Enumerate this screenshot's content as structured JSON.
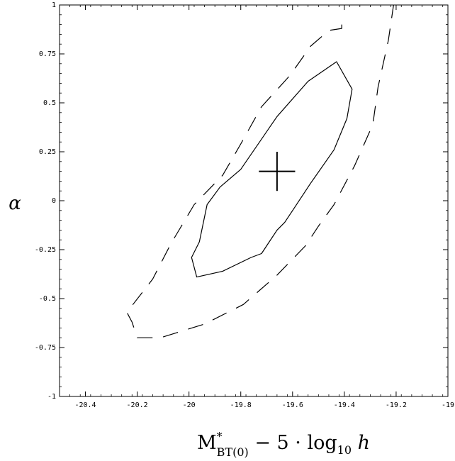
{
  "chart_data": {
    "type": "contour",
    "xlabel": "M*BT(0) − 5·log10 h",
    "xlabel_parts": {
      "base": "M",
      "sup": "*",
      "sub": "BT(0)",
      "rest": " − 5 · log",
      "log_sub": "10",
      "tail": " h"
    },
    "ylabel": "α",
    "xlim": [
      -20.5,
      -19.0
    ],
    "ylim": [
      -1,
      1
    ],
    "x_ticks": [
      {
        "value": -20.4,
        "label": "-20.4"
      },
      {
        "value": -20.2,
        "label": "-20.2"
      },
      {
        "value": -20.0,
        "label": "-20"
      },
      {
        "value": -19.8,
        "label": "-19.8"
      },
      {
        "value": -19.6,
        "label": "-19.6"
      },
      {
        "value": -19.4,
        "label": "-19.4"
      },
      {
        "value": -19.2,
        "label": "-19.2"
      },
      {
        "value": -19.0,
        "label": "-19"
      }
    ],
    "y_ticks": [
      {
        "value": -1,
        "label": "-1"
      },
      {
        "value": -0.75,
        "label": "-0.75"
      },
      {
        "value": -0.5,
        "label": "-0.5"
      },
      {
        "value": -0.25,
        "label": "-0.25"
      },
      {
        "value": 0,
        "label": "0"
      },
      {
        "value": 0.25,
        "label": "0.25"
      },
      {
        "value": 0.5,
        "label": "0.5"
      },
      {
        "value": 0.75,
        "label": "0.75"
      },
      {
        "value": 1,
        "label": "1"
      }
    ],
    "best_fit": {
      "x": -19.66,
      "y": 0.15,
      "dx": 0.07,
      "dy": 0.1
    },
    "contours": [
      {
        "style": "solid",
        "closed": true,
        "points": [
          [
            -19.43,
            0.71
          ],
          [
            -19.54,
            0.61
          ],
          [
            -19.66,
            0.43
          ],
          [
            -19.8,
            0.16
          ],
          [
            -19.88,
            0.07
          ],
          [
            -19.93,
            -0.02
          ],
          [
            -19.96,
            -0.21
          ],
          [
            -19.99,
            -0.29
          ],
          [
            -19.97,
            -0.39
          ],
          [
            -19.87,
            -0.36
          ],
          [
            -19.76,
            -0.29
          ],
          [
            -19.72,
            -0.27
          ],
          [
            -19.66,
            -0.15
          ],
          [
            -19.63,
            -0.11
          ],
          [
            -19.59,
            -0.03
          ],
          [
            -19.53,
            0.09
          ],
          [
            -19.44,
            0.26
          ],
          [
            -19.39,
            0.42
          ],
          [
            -19.37,
            0.57
          ]
        ]
      },
      {
        "style": "dashed",
        "closed": false,
        "points": [
          [
            -19.41,
            0.9
          ],
          [
            -19.41,
            0.88
          ],
          [
            -19.46,
            0.87
          ],
          [
            -19.53,
            0.79
          ],
          [
            -19.61,
            0.64
          ],
          [
            -19.72,
            0.48
          ],
          [
            -19.8,
            0.29
          ],
          [
            -19.87,
            0.13
          ],
          [
            -19.98,
            -0.02
          ],
          [
            -20.07,
            -0.22
          ],
          [
            -20.14,
            -0.4
          ],
          [
            -20.24,
            -0.57
          ],
          [
            -20.22,
            -0.62
          ],
          [
            -20.2,
            -0.7
          ],
          [
            -20.11,
            -0.7
          ],
          [
            -19.94,
            -0.63
          ],
          [
            -19.79,
            -0.53
          ],
          [
            -19.66,
            -0.38
          ],
          [
            -19.55,
            -0.23
          ],
          [
            -19.5,
            -0.13
          ],
          [
            -19.44,
            -0.02
          ],
          [
            -19.36,
            0.18
          ],
          [
            -19.29,
            0.39
          ],
          [
            -19.27,
            0.58
          ],
          [
            -19.23,
            0.82
          ],
          [
            -19.21,
            1.0
          ]
        ]
      }
    ]
  }
}
